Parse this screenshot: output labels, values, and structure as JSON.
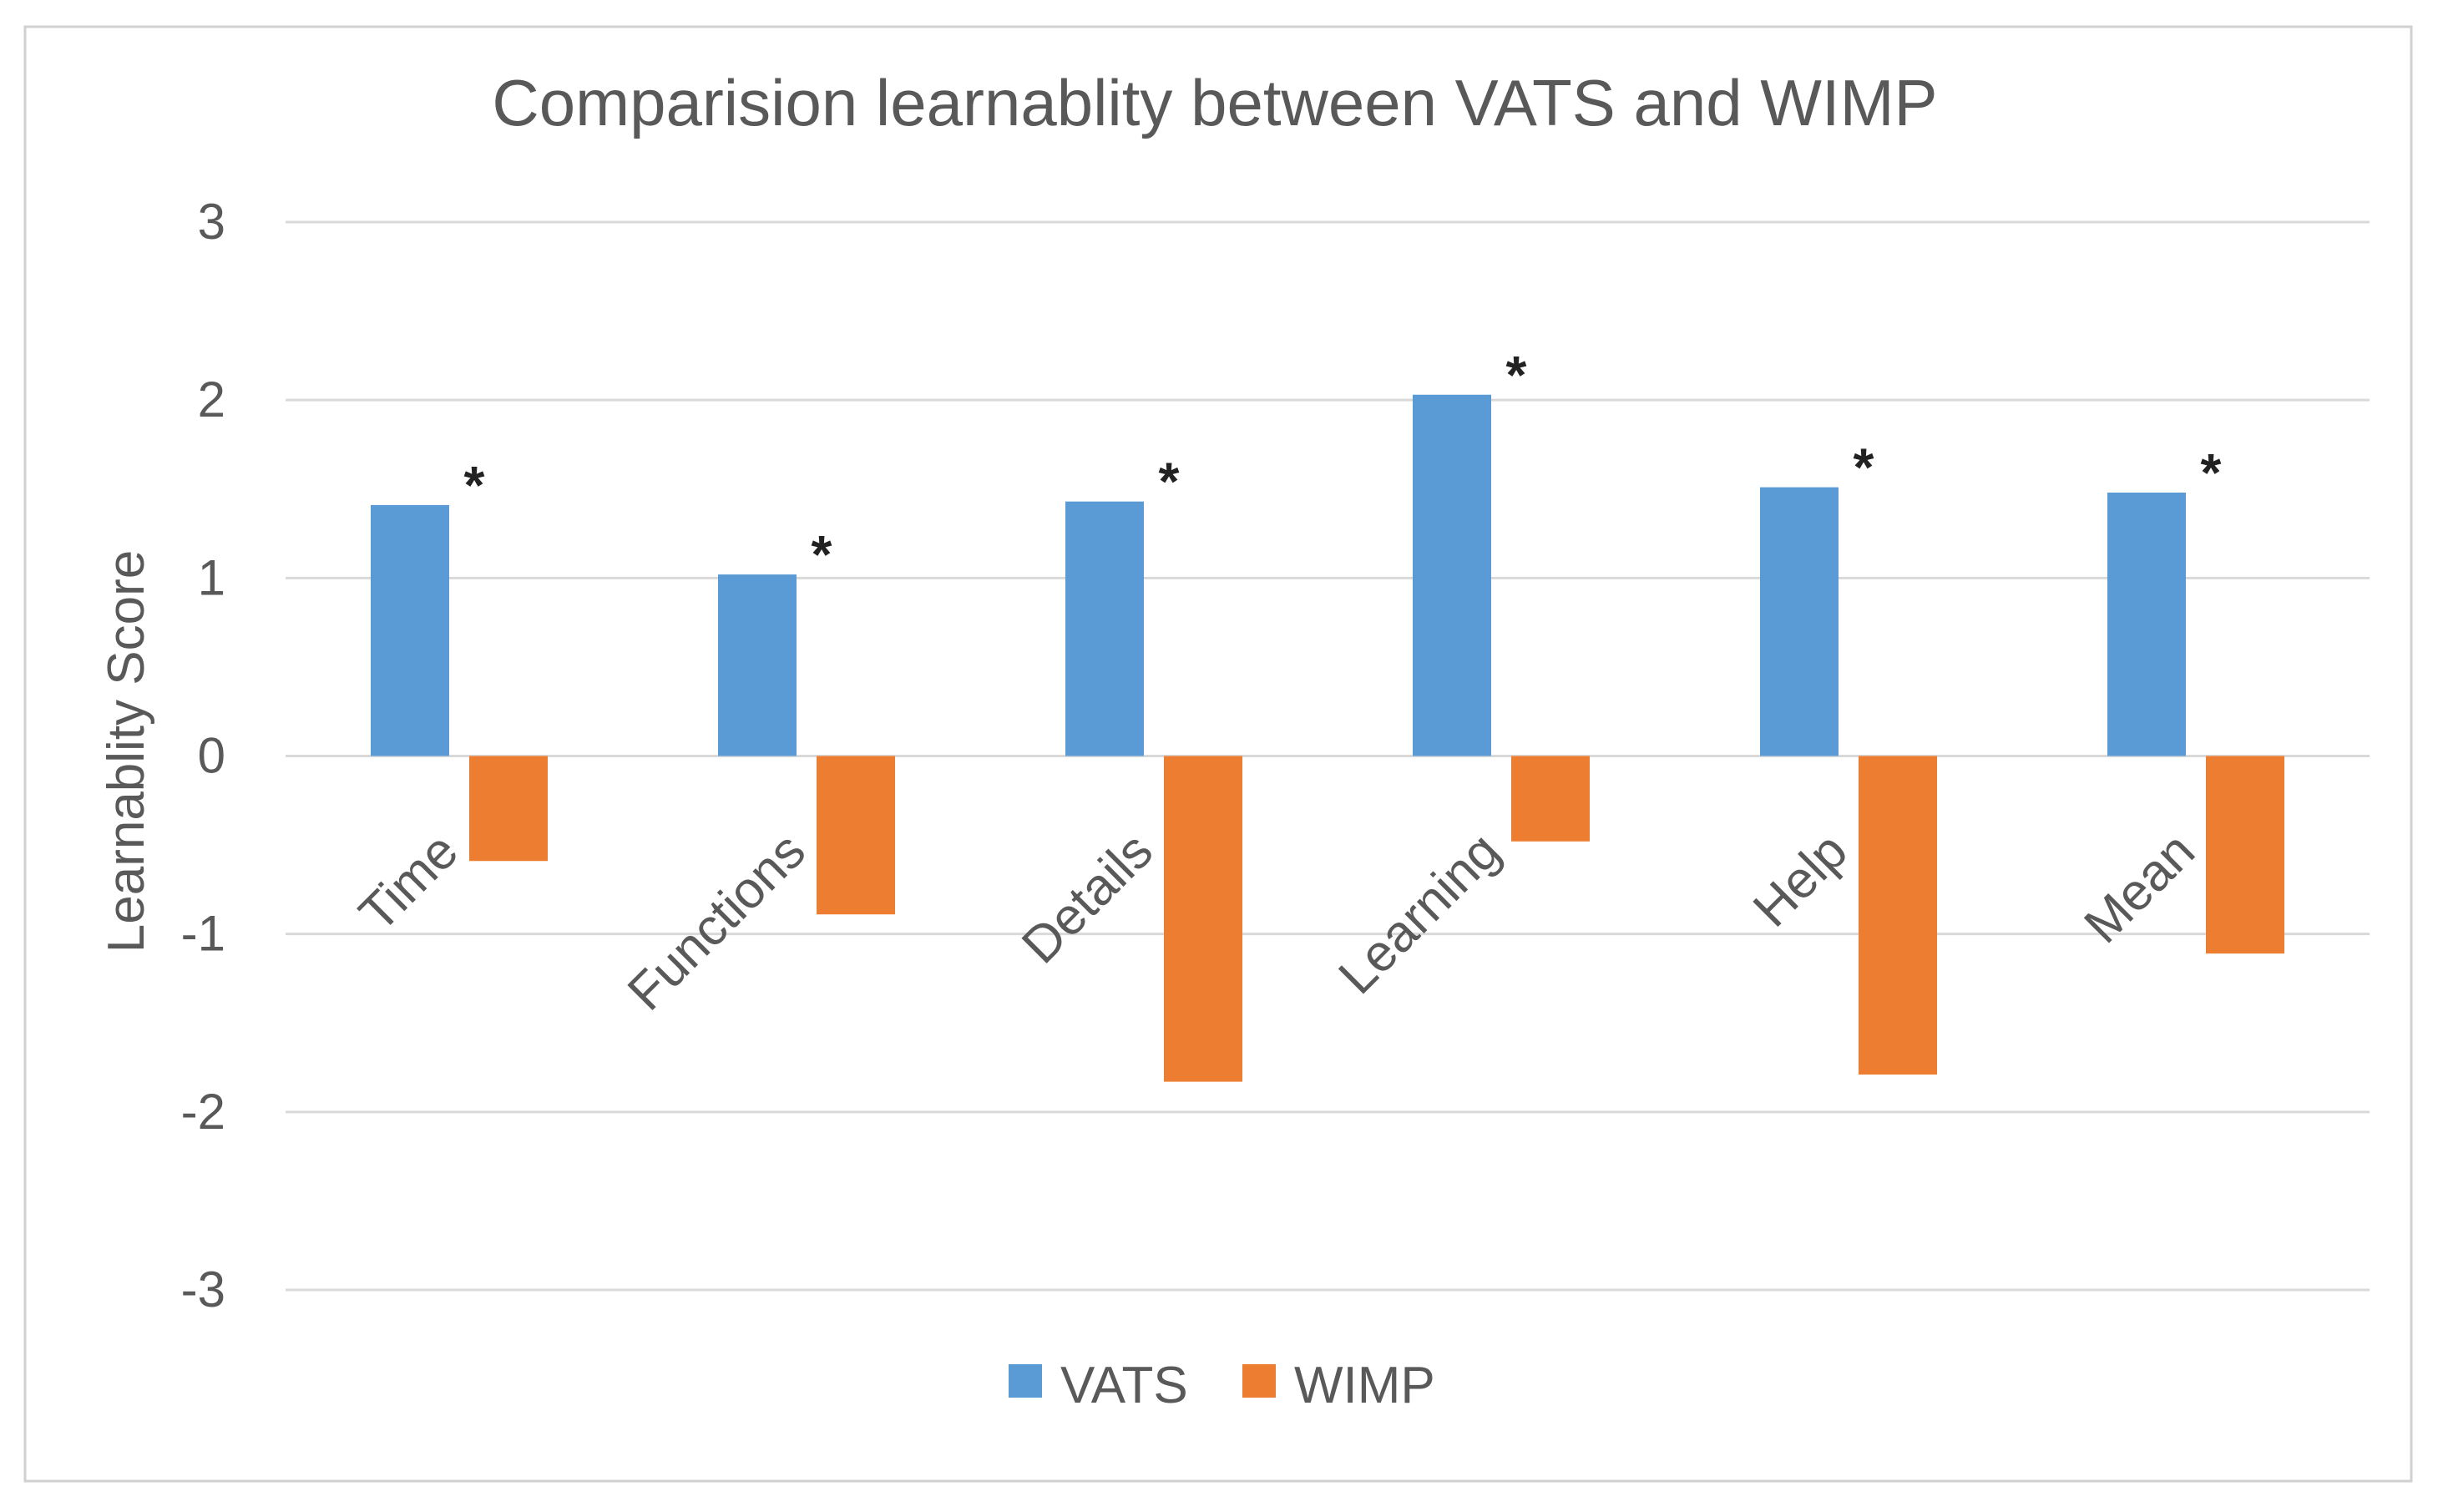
{
  "chart_data": {
    "type": "bar",
    "title": "Comparision learnablity between VATS and WIMP",
    "xlabel": "",
    "ylabel": "Learnablity  Score",
    "ylim": [
      -3,
      3
    ],
    "yticks": [
      3,
      2,
      1,
      0,
      -1,
      -2,
      -3
    ],
    "grid": true,
    "legend_position": "bottom",
    "categories": [
      "Time",
      "Functions",
      "Details",
      "Learning",
      "Help",
      "Mean"
    ],
    "series": [
      {
        "name": "VATS",
        "color": "#5B9BD5",
        "values": [
          1.41,
          1.02,
          1.43,
          2.03,
          1.51,
          1.48
        ]
      },
      {
        "name": "WIMP",
        "color": "#ED7D31",
        "values": [
          -0.59,
          -0.89,
          -1.83,
          -0.48,
          -1.79,
          -1.11
        ]
      }
    ],
    "significance": [
      "*",
      "*",
      "*",
      "*",
      "*",
      "*"
    ]
  }
}
